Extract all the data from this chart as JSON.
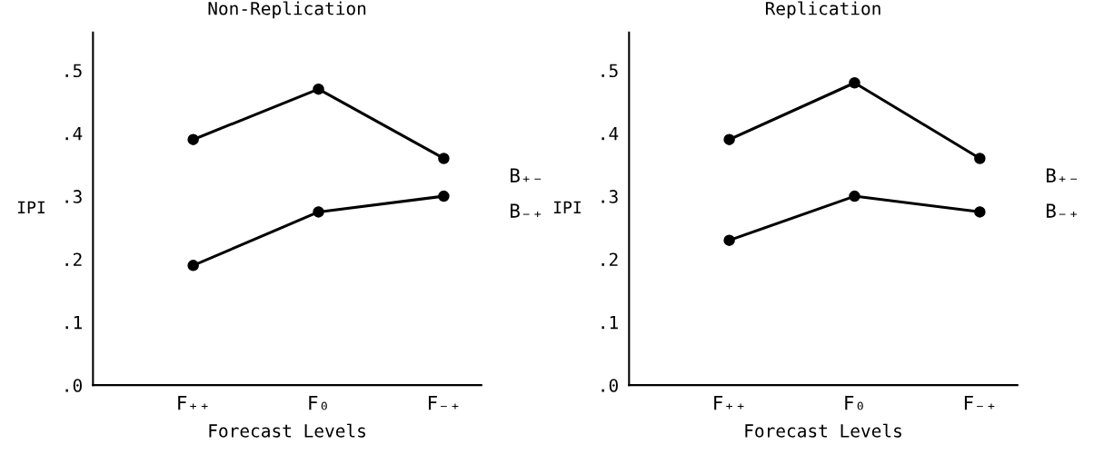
{
  "chart_data": [
    {
      "type": "line",
      "title": "Non-Replication",
      "xlabel": "Forecast Levels",
      "ylabel": "IPI",
      "categories": [
        "F₊₊",
        "F₀",
        "F₋₊"
      ],
      "ylim": [
        0,
        0.56
      ],
      "yticks": [
        {
          "value": 0,
          "label": ".0"
        },
        {
          "value": 0.1,
          "label": ".1"
        },
        {
          "value": 0.2,
          "label": ".2"
        },
        {
          "value": 0.3,
          "label": ".3"
        },
        {
          "value": 0.4,
          "label": ".4"
        },
        {
          "value": 0.5,
          "label": ".5"
        }
      ],
      "marker": "circle",
      "line_style": "solid",
      "grid": false,
      "series": [
        {
          "name": "B₊₋",
          "color": "#000000",
          "values": [
            0.39,
            0.47,
            0.36
          ]
        },
        {
          "name": "B₋₊",
          "color": "#000000",
          "values": [
            0.19,
            0.275,
            0.3
          ]
        }
      ]
    },
    {
      "type": "line",
      "title": "Replication",
      "xlabel": "Forecast Levels",
      "ylabel": "IPI",
      "categories": [
        "F₊₊",
        "F₀",
        "F₋₊"
      ],
      "ylim": [
        0,
        0.56
      ],
      "yticks": [
        {
          "value": 0,
          "label": ".0"
        },
        {
          "value": 0.1,
          "label": ".1"
        },
        {
          "value": 0.2,
          "label": ".2"
        },
        {
          "value": 0.3,
          "label": ".3"
        },
        {
          "value": 0.4,
          "label": ".4"
        },
        {
          "value": 0.5,
          "label": ".5"
        }
      ],
      "marker": "circle",
      "line_style": "solid",
      "grid": false,
      "series": [
        {
          "name": "B₊₋",
          "color": "#000000",
          "values": [
            0.39,
            0.48,
            0.36
          ]
        },
        {
          "name": "B₋₊",
          "color": "#000000",
          "values": [
            0.23,
            0.3,
            0.275
          ]
        }
      ]
    }
  ]
}
